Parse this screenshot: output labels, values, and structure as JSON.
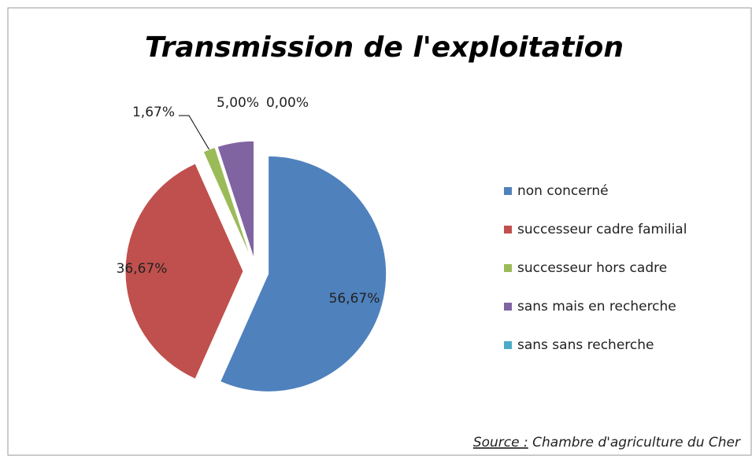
{
  "chart_data": {
    "type": "pie",
    "title": "Transmission de l'exploitation",
    "categories": [
      "non concerné",
      "successeur cadre familial",
      "successeur hors cadre",
      "sans mais en recherche",
      "sans sans recherche"
    ],
    "values": [
      56.67,
      36.67,
      1.67,
      5.0,
      0.0
    ],
    "value_labels": [
      "56,67%",
      "36,67%",
      "1,67%",
      "5,00%",
      "0,00%"
    ],
    "colors": [
      "#4f81bd",
      "#c0504d",
      "#9bbb59",
      "#8064a2",
      "#4bacc6"
    ],
    "legend": "right",
    "source_label": "Source :",
    "source": "Chambre d'agriculture du Cher"
  }
}
